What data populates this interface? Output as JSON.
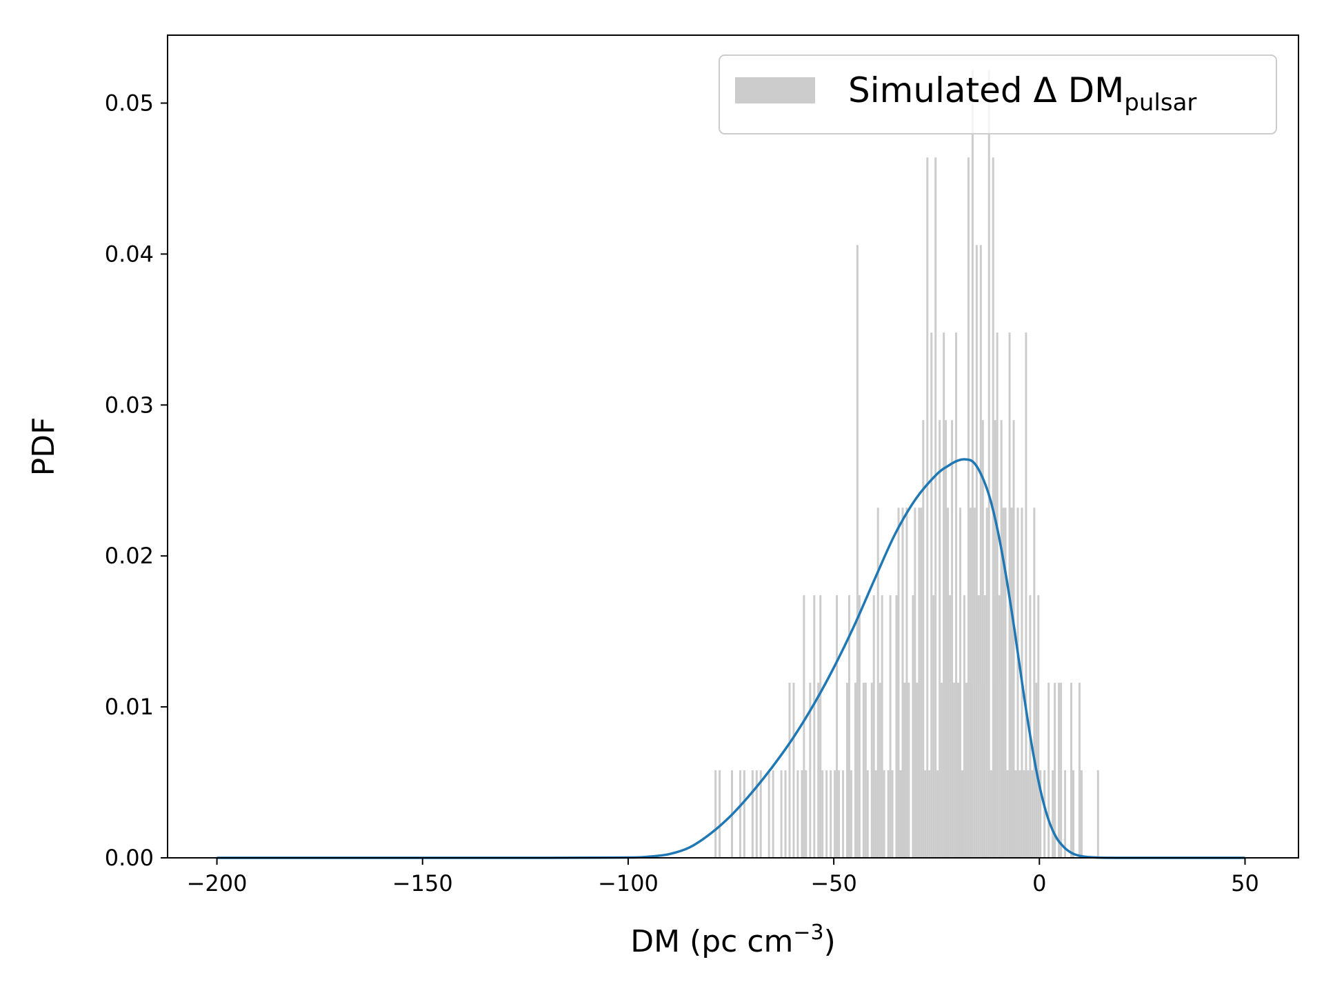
{
  "chart_data": {
    "type": "bar",
    "xlabel": "DM (pc cm",
    "xlabel_exponent": "−3",
    "xlabel_close": ")",
    "ylabel": "PDF",
    "xlim": [
      -212,
      63
    ],
    "ylim": [
      0,
      0.0545
    ],
    "xticks": [
      -200,
      -150,
      -100,
      -50,
      0,
      50
    ],
    "xtick_labels": [
      "−200",
      "−150",
      "−100",
      "−50",
      "0",
      "50"
    ],
    "yticks": [
      0.0,
      0.01,
      0.02,
      0.03,
      0.04,
      0.05
    ],
    "ytick_labels": [
      "0.00",
      "0.01",
      "0.02",
      "0.03",
      "0.04",
      "0.05"
    ],
    "grid": false,
    "legend": {
      "position": "top-right",
      "entries": [
        {
          "label": "Simulated Δ DM",
          "subscript": "pulsar",
          "color": "#cccccc"
        }
      ]
    },
    "histogram": {
      "name": "Simulated Δ DM pulsar",
      "color": "#cccccc",
      "bin_width": 0.5,
      "bins": [
        [
          -79,
          0.0058
        ],
        [
          -78,
          0.0058
        ],
        [
          -75,
          0.0058
        ],
        [
          -73,
          0.0058
        ],
        [
          -72,
          0.0058
        ],
        [
          -70,
          0.0058
        ],
        [
          -69,
          0.0058
        ],
        [
          -68,
          0.0058
        ],
        [
          -66,
          0.0058
        ],
        [
          -65,
          0.0058
        ],
        [
          -63,
          0.0058
        ],
        [
          -62,
          0.0058
        ],
        [
          -61,
          0.0116
        ],
        [
          -60,
          0.0116
        ],
        [
          -59,
          0.0058
        ],
        [
          -58,
          0.0058
        ],
        [
          -57,
          0.0058
        ],
        [
          -56,
          0.0116
        ],
        [
          -55,
          0.0174
        ],
        [
          -54,
          0.0116
        ],
        [
          -53,
          0.0058
        ],
        [
          -52,
          0.0058
        ],
        [
          -51,
          0.0058
        ],
        [
          -50,
          0.0058
        ],
        [
          -49,
          0.0058
        ],
        [
          -48,
          0.0058
        ],
        [
          -47,
          0.0116
        ],
        [
          -46,
          0.0058
        ],
        [
          -45,
          0.0116
        ],
        [
          -44,
          0.0174
        ],
        [
          -43,
          0.0116
        ],
        [
          -42,
          0.0058
        ],
        [
          -41,
          0.0116
        ],
        [
          -40,
          0.0058
        ],
        [
          -39,
          0.0116
        ],
        [
          -38,
          0.0058
        ],
        [
          -37,
          0.0058
        ],
        [
          -36,
          0.0058
        ],
        [
          -35,
          0.0174
        ],
        [
          -34,
          0.0058
        ],
        [
          -33,
          0.0116
        ],
        [
          -32,
          0.0116
        ],
        [
          -31,
          0.0174
        ],
        [
          -30,
          0.0116
        ],
        [
          -29,
          0.0232
        ],
        [
          -28,
          0.0058
        ],
        [
          -27,
          0.0058
        ],
        [
          -26,
          0.0174
        ],
        [
          -25,
          0.0058
        ],
        [
          -24,
          0.0116
        ],
        [
          -23,
          0.0232
        ],
        [
          -22,
          0.0174
        ],
        [
          -21,
          0.0116
        ],
        [
          -20,
          0.0116
        ],
        [
          -19,
          0.0058
        ],
        [
          -18,
          0.0116
        ],
        [
          -17,
          0.0116
        ],
        [
          -16,
          0.0232
        ],
        [
          -15,
          0.0174
        ],
        [
          -14,
          0.0116
        ],
        [
          -13,
          0.0232
        ],
        [
          -12,
          0.0058
        ],
        [
          -11,
          0.0116
        ],
        [
          -10,
          0.0174
        ],
        [
          -9,
          0.0116
        ],
        [
          -8,
          0.0058
        ],
        [
          -7,
          0.0116
        ],
        [
          -6,
          0.0058
        ],
        [
          -5,
          0.0058
        ],
        [
          -4,
          0.0058
        ],
        [
          -3,
          0.0058
        ],
        [
          -2,
          0.0058
        ],
        [
          -1,
          0.0116
        ],
        [
          0,
          0.0058
        ],
        [
          1,
          0.0058
        ],
        [
          2,
          0.0116
        ],
        [
          3,
          0.0058
        ],
        [
          5,
          0.0116
        ],
        [
          6,
          0.0058
        ],
        [
          8,
          0.0058
        ],
        [
          10,
          0.0058
        ],
        [
          14,
          0.0058
        ],
        [
          -53.5,
          0.0174
        ],
        [
          -44.5,
          0.0406
        ],
        [
          -42.5,
          0.0116
        ],
        [
          -40.5,
          0.0174
        ],
        [
          -38.5,
          0.0174
        ],
        [
          -36.5,
          0.0174
        ],
        [
          -34.5,
          0.0232
        ],
        [
          -32.5,
          0.0232
        ],
        [
          -30.5,
          0.0232
        ],
        [
          -28.5,
          0.029
        ],
        [
          -27.5,
          0.0464
        ],
        [
          -26.5,
          0.0348
        ],
        [
          -25.5,
          0.0464
        ],
        [
          -24.5,
          0.029
        ],
        [
          -23.5,
          0.0348
        ],
        [
          -22.5,
          0.0232
        ],
        [
          -21.5,
          0.029
        ],
        [
          -20.5,
          0.0348
        ],
        [
          -19.5,
          0.0232
        ],
        [
          -18.5,
          0.0174
        ],
        [
          -17.5,
          0.0464
        ],
        [
          -16.5,
          0.0522
        ],
        [
          -15.5,
          0.0406
        ],
        [
          -14.5,
          0.0406
        ],
        [
          -13.5,
          0.0174
        ],
        [
          -12.5,
          0.0522
        ],
        [
          -11.5,
          0.0464
        ],
        [
          -10.5,
          0.0348
        ],
        [
          -9.5,
          0.029
        ],
        [
          -8.5,
          0.0232
        ],
        [
          -7.5,
          0.0348
        ],
        [
          -6.5,
          0.029
        ],
        [
          -5.5,
          0.0232
        ],
        [
          -3.5,
          0.0348
        ],
        [
          -1.5,
          0.0232
        ],
        [
          -0.5,
          0.0174
        ],
        [
          3.5,
          0.0116
        ],
        [
          4.5,
          0.0116
        ],
        [
          7.5,
          0.0116
        ],
        [
          9.5,
          0.0116
        ],
        [
          -57.5,
          0.0174
        ],
        [
          -49.5,
          0.0174
        ],
        [
          -46.5,
          0.0174
        ],
        [
          -39.5,
          0.0232
        ],
        [
          -33.5,
          0.0232
        ],
        [
          -29.5,
          0.0232
        ],
        [
          -23.0,
          0.029
        ],
        [
          -17.0,
          0.0232
        ],
        [
          -14.0,
          0.029
        ],
        [
          -11.0,
          0.029
        ],
        [
          -9.0,
          0.0232
        ],
        [
          -7.0,
          0.0232
        ],
        [
          -4.5,
          0.0232
        ],
        [
          -2.5,
          0.0174
        ]
      ]
    },
    "series": [
      {
        "name": "",
        "type": "line",
        "color": "#1f77b4",
        "x": [
          -200,
          -150,
          -120,
          -100,
          -95,
          -90,
          -85,
          -80,
          -75,
          -70,
          -65,
          -60,
          -55,
          -50,
          -45,
          -40,
          -35,
          -30,
          -25,
          -22,
          -20,
          -18,
          -16,
          -14,
          -12,
          -10,
          -8,
          -6,
          -4,
          -2,
          0,
          2,
          4,
          6,
          8,
          10,
          12,
          15,
          20,
          30,
          40,
          50
        ],
        "y": [
          0,
          0,
          0,
          2e-05,
          8e-05,
          0.00025,
          0.0007,
          0.0016,
          0.0028,
          0.0043,
          0.006,
          0.0079,
          0.0101,
          0.0126,
          0.0154,
          0.0185,
          0.0215,
          0.0238,
          0.0254,
          0.026,
          0.0263,
          0.0264,
          0.0262,
          0.0253,
          0.0238,
          0.0215,
          0.0185,
          0.015,
          0.0112,
          0.0077,
          0.0048,
          0.0027,
          0.0014,
          0.0007,
          0.0003,
          0.00012,
          5e-05,
          1e-05,
          0,
          0,
          0,
          0
        ]
      }
    ]
  }
}
